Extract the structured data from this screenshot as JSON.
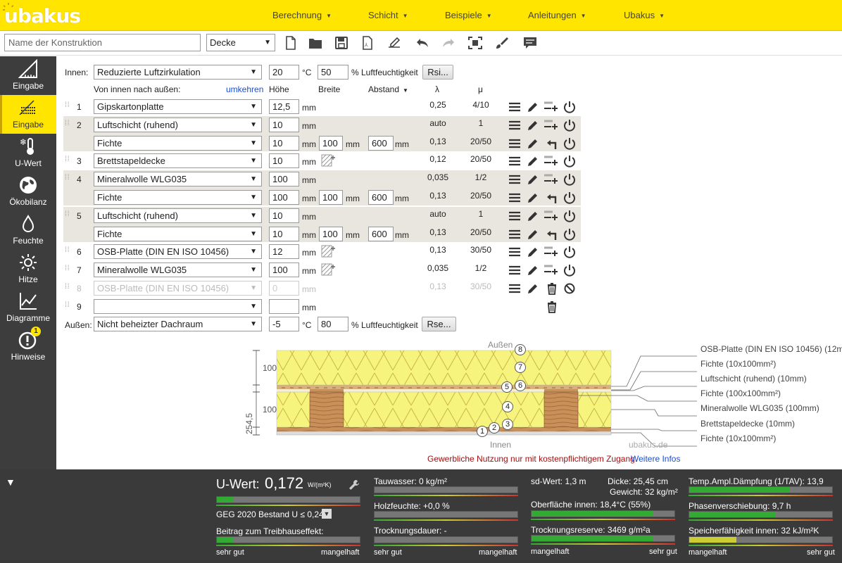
{
  "app": {
    "logo": "ubakus",
    "nav": [
      {
        "label": "Berechnung"
      },
      {
        "label": "Schicht"
      },
      {
        "label": "Beispiele"
      },
      {
        "label": "Anleitungen"
      },
      {
        "label": "Ubakus"
      }
    ]
  },
  "toolbar": {
    "name_placeholder": "Name der Konstruktion",
    "type_value": "Decke",
    "icons": [
      "new-file-icon",
      "open-folder-icon",
      "save-icon",
      "pdf-icon",
      "sign-icon",
      "undo-icon",
      "redo-icon",
      "fullscreen-icon",
      "brush-icon",
      "comment-icon"
    ]
  },
  "sidebar": {
    "items": [
      {
        "label": "Eingabe",
        "icon": "triangle-ruler-icon"
      },
      {
        "label": "Eingabe",
        "icon": "layers-icon",
        "active": true
      },
      {
        "label": "U-Wert",
        "icon": "thermometer-icon"
      },
      {
        "label": "Ökobilanz",
        "icon": "globe-icon"
      },
      {
        "label": "Feuchte",
        "icon": "drop-icon"
      },
      {
        "label": "Hitze",
        "icon": "sun-icon"
      },
      {
        "label": "Diagramme",
        "icon": "chart-icon"
      },
      {
        "label": "Hinweise",
        "icon": "warning-icon",
        "badge": "1"
      }
    ]
  },
  "editor": {
    "inside": {
      "label": "Innen:",
      "select": "Reduzierte Luftzirkulation",
      "temp": "20",
      "temp_unit": "°C",
      "humidity": "50",
      "humidity_unit": "% Luftfeuchtigkeit",
      "button": "Rsi..."
    },
    "header": {
      "order": "Von innen nach außen:",
      "reverse": "umkehren",
      "height": "Höhe",
      "width": "Breite",
      "distance": "Abstand",
      "lambda": "λ",
      "mu": "μ"
    },
    "mm": "mm",
    "layers": [
      {
        "no": "1",
        "material": "Gipskartonplatte",
        "height": "12,5",
        "lambda": "0,25",
        "mu": "4/10"
      },
      {
        "no": "2",
        "material": "Luftschicht (ruhend)",
        "height": "10",
        "lambda": "auto",
        "mu": "1",
        "sub": {
          "material": "Fichte",
          "height": "10",
          "width": "100",
          "distance": "600",
          "lambda": "0,13",
          "mu": "20/50"
        }
      },
      {
        "no": "3",
        "material": "Brettstapeldecke",
        "height": "10",
        "lambda": "0,12",
        "mu": "20/50"
      },
      {
        "no": "4",
        "material": "Mineralwolle WLG035",
        "height": "100",
        "lambda": "0,035",
        "mu": "1/2",
        "sub": {
          "material": "Fichte",
          "height": "100",
          "width": "100",
          "distance": "600",
          "lambda": "0,13",
          "mu": "20/50"
        }
      },
      {
        "no": "5",
        "material": "Luftschicht (ruhend)",
        "height": "10",
        "lambda": "auto",
        "mu": "1",
        "sub": {
          "material": "Fichte",
          "height": "10",
          "width": "100",
          "distance": "600",
          "lambda": "0,13",
          "mu": "20/50"
        }
      },
      {
        "no": "6",
        "material": "OSB-Platte (DIN EN ISO 10456)",
        "height": "12",
        "lambda": "0,13",
        "mu": "30/50"
      },
      {
        "no": "7",
        "material": "Mineralwolle WLG035",
        "height": "100",
        "lambda": "0,035",
        "mu": "1/2"
      },
      {
        "no": "8",
        "material": "OSB-Platte (DIN EN ISO 10456)",
        "height": "0",
        "lambda": "0,13",
        "mu": "30/50",
        "disabled": true
      },
      {
        "no": "9",
        "material": "",
        "height": "",
        "lambda": "",
        "mu": ""
      }
    ],
    "outside": {
      "label": "Außen:",
      "select": "Nicht beheizter Dachraum",
      "temp": "-5",
      "temp_unit": "°C",
      "humidity": "80",
      "humidity_unit": "% Luftfeuchtigkeit",
      "button": "Rse..."
    }
  },
  "drawing": {
    "top_label": "Außen",
    "bottom_label": "Innen",
    "watermark": "ubakus.de",
    "total": "254,5",
    "dim_upper": "100",
    "dim_lower": "100",
    "markers": [
      "1",
      "2",
      "3",
      "4",
      "5",
      "6",
      "7",
      "8"
    ],
    "legend": [
      "OSB-Platte (DIN EN ISO 10456) (12mm)",
      "Fichte (10x100mm²)",
      "Luftschicht (ruhend) (10mm)",
      "Fichte (100x100mm²)",
      "Mineralwolle WLG035 (100mm)",
      "Brettstapeldecke (10mm)",
      "Fichte (10x100mm²)"
    ],
    "notice": "Gewerbliche Nutzung nur mit kostenpflichtigem Zugang.",
    "notice_link": "Weitere Infos"
  },
  "results": {
    "uwert_label": "U-Wert:",
    "uwert_value": "0,172",
    "uwert_unit": "W/(m²K)",
    "geg": "GEG 2020 Bestand U ≤ 0,24",
    "treibhaus": "Beitrag zum Treibhauseffekt:",
    "tauwasser": "Tauwasser: 0 kg/m²",
    "holzfeuchte": "Holzfeuchte: +0,0 %",
    "trocknungsdauer": "Trocknungsdauer: -",
    "sdwert": "sd-Wert: 1,3 m",
    "dicke": "Dicke: 25,45 cm",
    "gewicht": "Gewicht: 32 kg/m²",
    "oberflaeche": "Oberfläche innen: 18,4°C (55%)",
    "trocknungsreserve": "Trocknungsreserve: 3469 g/m²a",
    "temp_ampl": "Temp.Ampl.Dämpfung (1/TAV): 13,9",
    "phasen": "Phasenverschiebung: 9,7 h",
    "speicher": "Speicherfähigkeit innen: 32 kJ/m²K",
    "scale_good": "sehr gut",
    "scale_bad": "mangelhaft",
    "levels": {
      "uwert": 0.12,
      "treibhaus": 0.12,
      "tauwasser": 0.0,
      "holzfeuchte": 0.0,
      "trocknungsdauer": 0.0,
      "oberflaeche": 0.85,
      "trocknungsreserve": 0.85,
      "temp_ampl": 0.7,
      "phasen": 0.6,
      "speicher": 0.33
    }
  }
}
